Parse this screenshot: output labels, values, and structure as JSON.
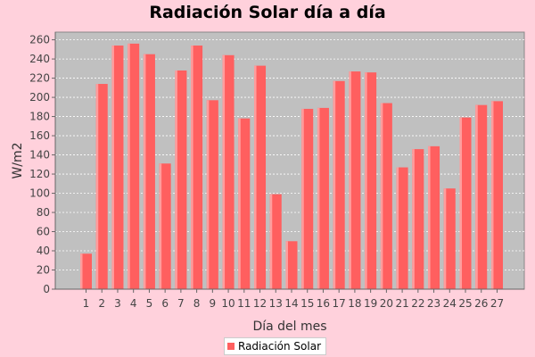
{
  "colors": {
    "background": "#ffd1dc",
    "plot_background": "#c0c0c0",
    "bar": "#ff5f5f",
    "bar_highlight": "#ff9d9d",
    "grid": "#ffffff"
  },
  "chart_data": {
    "type": "bar",
    "title": "Radiación Solar día a día",
    "xlabel": "Día del mes",
    "ylabel": "W/m2",
    "ylim": [
      0,
      268
    ],
    "yticks": [
      0,
      20,
      40,
      60,
      80,
      100,
      120,
      140,
      160,
      180,
      200,
      220,
      240,
      260
    ],
    "grid": true,
    "legend": "bottom",
    "categories": [
      "1",
      "2",
      "3",
      "4",
      "5",
      "6",
      "7",
      "8",
      "9",
      "10",
      "11",
      "12",
      "13",
      "14",
      "15",
      "16",
      "17",
      "18",
      "19",
      "20",
      "21",
      "22",
      "23",
      "24",
      "25",
      "26",
      "27"
    ],
    "series": [
      {
        "name": "Radiación Solar",
        "values": [
          37,
          214,
          254,
          256,
          245,
          131,
          228,
          254,
          197,
          244,
          178,
          233,
          99,
          50,
          188,
          189,
          217,
          227,
          226,
          194,
          127,
          146,
          149,
          105,
          179,
          192,
          196
        ]
      }
    ]
  }
}
